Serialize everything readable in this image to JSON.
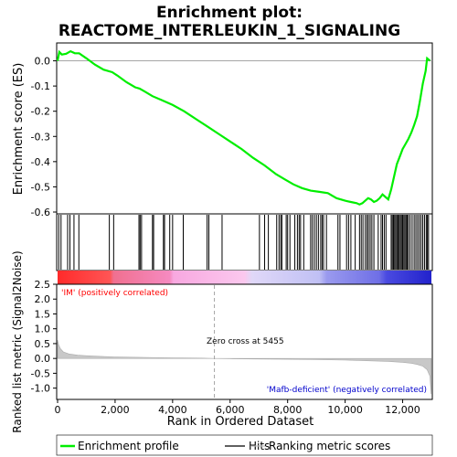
{
  "chart_data": {
    "type": "line",
    "title_line1": "Enrichment plot:",
    "title_line2": "REACTOME_INTERLEUKIN_1_SIGNALING",
    "es_ylabel": "Enrichment score (ES)",
    "metric_ylabel": "Ranked list metric (Signal2Noise)",
    "xlabel": "Rank in Ordered Dataset",
    "xlim": [
      0,
      13000
    ],
    "x_ticks": [
      0,
      2000,
      4000,
      6000,
      8000,
      10000,
      12000
    ],
    "x_tick_labels": [
      "0",
      "2,000",
      "4,000",
      "6,000",
      "8,000",
      "10,000",
      "12,000"
    ],
    "es_ylim": [
      -0.6,
      0.06
    ],
    "es_ticks": [
      0.0,
      -0.1,
      -0.2,
      -0.3,
      -0.4,
      -0.5,
      -0.6
    ],
    "es_tick_labels": [
      "0.0",
      "-0.1",
      "-0.2",
      "-0.3",
      "-0.4",
      "-0.5",
      "-0.6"
    ],
    "metric_ylim": [
      -1.35,
      2.5
    ],
    "metric_ticks": [
      2.5,
      2.0,
      1.5,
      1.0,
      0.5,
      0.0,
      -0.5,
      -1.0
    ],
    "metric_tick_labels": [
      "2.5",
      "2.0",
      "1.5",
      "1.0",
      "0.5",
      "0.0",
      "-0.5",
      "-1.0"
    ],
    "zero_cross_rank": 5455,
    "zero_cross_label": "Zero cross at 5455",
    "pos_label": "'IM' (positively correlated)",
    "neg_label": "'Mafb-deficient' (negatively correlated)",
    "colors": {
      "es_line": "#00ee00",
      "pos_text": "#ff0000",
      "neg_text": "#0000cc"
    },
    "legend": [
      {
        "label": "Enrichment profile",
        "color": "#00ee00"
      },
      {
        "label": "Hits",
        "color": "#000000"
      },
      {
        "label": "Ranking metric scores",
        "color": "#bbbbbb"
      }
    ],
    "es_curve": {
      "x": [
        0,
        60,
        150,
        300,
        450,
        600,
        750,
        1000,
        1300,
        1600,
        1900,
        2100,
        2400,
        2700,
        2850,
        3000,
        3300,
        3600,
        4000,
        4400,
        4800,
        5200,
        5600,
        6000,
        6400,
        6800,
        7200,
        7600,
        7900,
        8200,
        8500,
        8800,
        9100,
        9400,
        9700,
        10000,
        10200,
        10400,
        10500,
        10600,
        10700,
        10800,
        10900,
        11000,
        11100,
        11200,
        11300,
        11400,
        11500,
        11600,
        11700,
        11800,
        11900,
        12000,
        12100,
        12200,
        12300,
        12400,
        12500,
        12600,
        12700,
        12800,
        12850,
        12900,
        12950
      ],
      "y": [
        0.0,
        0.035,
        0.025,
        0.028,
        0.038,
        0.03,
        0.03,
        0.01,
        -0.015,
        -0.035,
        -0.045,
        -0.06,
        -0.085,
        -0.105,
        -0.11,
        -0.12,
        -0.14,
        -0.155,
        -0.175,
        -0.2,
        -0.23,
        -0.26,
        -0.29,
        -0.32,
        -0.35,
        -0.385,
        -0.415,
        -0.45,
        -0.47,
        -0.49,
        -0.505,
        -0.515,
        -0.52,
        -0.525,
        -0.545,
        -0.555,
        -0.56,
        -0.565,
        -0.57,
        -0.565,
        -0.555,
        -0.545,
        -0.55,
        -0.56,
        -0.555,
        -0.545,
        -0.53,
        -0.54,
        -0.55,
        -0.51,
        -0.46,
        -0.41,
        -0.38,
        -0.35,
        -0.33,
        -0.31,
        -0.285,
        -0.255,
        -0.22,
        -0.16,
        -0.09,
        -0.04,
        0.01,
        0.005,
        0.0
      ]
    },
    "hits": [
      40,
      120,
      350,
      430,
      570,
      740,
      1800,
      1950,
      2830,
      2870,
      2920,
      3300,
      3340,
      3680,
      3720,
      3900,
      4000,
      4370,
      5200,
      5260,
      5720,
      7020,
      7200,
      7330,
      7620,
      7700,
      7760,
      7800,
      7950,
      8000,
      8080,
      8250,
      8340,
      8400,
      8450,
      8560,
      8800,
      8860,
      8930,
      9000,
      9070,
      9150,
      9200,
      9250,
      9350,
      9750,
      9820,
      10050,
      10120,
      10200,
      10350,
      10500,
      10560,
      10620,
      10700,
      10760,
      10810,
      10870,
      10930,
      11000,
      11150,
      11250,
      11300,
      11360,
      11420,
      11600,
      11640,
      11680,
      11720,
      11760,
      11800,
      11840,
      11880,
      11920,
      11960,
      12000,
      12040,
      12080,
      12120,
      12160,
      12200,
      12260,
      12330,
      12400,
      12460,
      12520,
      12580,
      12640,
      12700,
      12760,
      12820,
      12860,
      12900
    ],
    "metric_curve": {
      "x": [
        0,
        30,
        100,
        200,
        400,
        700,
        1000,
        1500,
        2000,
        3000,
        4000,
        5000,
        5455,
        6000,
        7000,
        8000,
        9000,
        10000,
        10500,
        11000,
        11500,
        12000,
        12300,
        12500,
        12700,
        12850,
        12950,
        12990
      ],
      "y": [
        0.62,
        0.48,
        0.33,
        0.22,
        0.15,
        0.11,
        0.09,
        0.07,
        0.05,
        0.035,
        0.02,
        0.01,
        0.0,
        -0.01,
        -0.02,
        -0.03,
        -0.04,
        -0.055,
        -0.07,
        -0.085,
        -0.1,
        -0.13,
        -0.16,
        -0.2,
        -0.26,
        -0.38,
        -0.6,
        -1.2
      ]
    }
  }
}
